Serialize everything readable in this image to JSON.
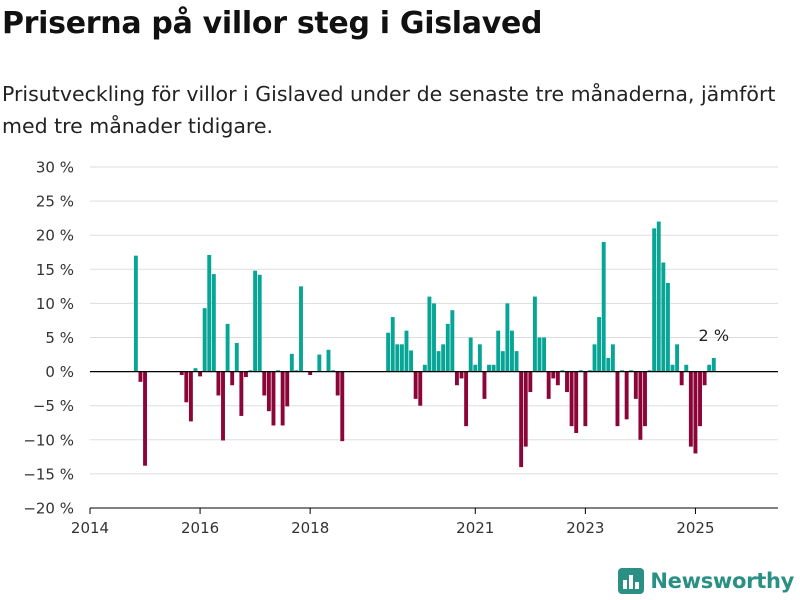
{
  "title": "Priserna på villor steg i Gislaved",
  "subtitle": "Prisutveckling för villor i Gislaved under de senaste tre månaderna, jämfört med tre månader tidigare.",
  "brand": "Newsworthy",
  "colors": {
    "positive": "#07a596",
    "negative": "#8c0538",
    "grid": "#dddddd",
    "axis": "#000000",
    "brand": "#2a8f84"
  },
  "chart_data": {
    "type": "bar",
    "xlabel": "",
    "ylabel": "",
    "ylim": [
      -20,
      30
    ],
    "yticks": [
      -20,
      -15,
      -10,
      -5,
      0,
      5,
      10,
      15,
      20,
      25,
      30
    ],
    "ytick_labels": [
      "−20 %",
      "−15 %",
      "−10 %",
      "−5 %",
      "0 %",
      "5 %",
      "10 %",
      "15 %",
      "20 %",
      "25 %",
      "30 %"
    ],
    "xticks": [
      2014,
      2016,
      2018,
      2021,
      2023,
      2025
    ],
    "xtick_labels": [
      "2014",
      "2016",
      "2018",
      "2021",
      "2023",
      "2025"
    ],
    "grid": true,
    "annotation": {
      "text": "2 %",
      "at": "last-bar"
    },
    "series": [
      {
        "x": [
          "2014-11",
          "2014-12",
          "2015-01",
          "2015-09",
          "2015-10",
          "2015-11",
          "2015-12",
          "2016-01",
          "2016-02",
          "2016-03",
          "2016-04",
          "2016-05",
          "2016-06",
          "2016-07",
          "2016-08",
          "2016-09",
          "2016-10",
          "2016-11",
          "2016-12",
          "2017-01",
          "2017-02",
          "2017-03",
          "2017-04",
          "2017-05",
          "2017-06",
          "2017-07",
          "2017-08",
          "2017-09",
          "2017-10",
          "2017-11",
          "2018-01",
          "2018-03",
          "2018-05",
          "2018-06",
          "2018-07",
          "2018-08",
          "2019-06",
          "2019-07",
          "2019-08",
          "2019-09",
          "2019-10",
          "2019-11",
          "2019-12",
          "2020-01",
          "2020-02",
          "2020-03",
          "2020-04",
          "2020-05",
          "2020-06",
          "2020-07",
          "2020-08",
          "2020-09",
          "2020-10",
          "2020-11",
          "2020-12",
          "2021-01",
          "2021-02",
          "2021-03",
          "2021-04",
          "2021-05",
          "2021-06",
          "2021-07",
          "2021-08",
          "2021-09",
          "2021-10",
          "2021-11",
          "2021-12",
          "2022-01",
          "2022-02",
          "2022-03",
          "2022-04",
          "2022-05",
          "2022-06",
          "2022-07",
          "2022-08",
          "2022-09",
          "2022-10",
          "2022-11",
          "2022-12",
          "2023-01",
          "2023-02",
          "2023-03",
          "2023-04",
          "2023-05",
          "2023-06",
          "2023-07",
          "2023-08",
          "2023-09",
          "2023-10",
          "2023-11",
          "2023-12",
          "2024-01",
          "2024-02",
          "2024-03",
          "2024-04",
          "2024-05",
          "2024-06",
          "2024-07",
          "2024-08",
          "2024-09",
          "2024-10",
          "2024-11",
          "2024-12",
          "2025-01",
          "2025-02",
          "2025-03",
          "2025-04",
          "2025-05"
        ],
        "values": [
          17,
          -1.5,
          -13.8,
          -0.5,
          -4.5,
          -7.3,
          0.5,
          -0.7,
          9.3,
          17.1,
          14.3,
          -3.5,
          -10.1,
          7,
          -2,
          4.2,
          -6.5,
          -0.8,
          0.2,
          14.8,
          14.2,
          -3.5,
          -5.8,
          -7.9,
          0.2,
          -7.9,
          -5.1,
          2.6,
          0.2,
          12.5,
          -0.5,
          2.5,
          3.2,
          0.2,
          -3.5,
          -10.2,
          5.7,
          8,
          4,
          4,
          6,
          3.1,
          -4,
          -5,
          1,
          11,
          10,
          3,
          4,
          7,
          9,
          -2,
          -1,
          -8,
          5,
          1,
          4,
          -4,
          1,
          1,
          6,
          3,
          10,
          6,
          3,
          -14,
          -11,
          -3,
          11,
          5,
          5,
          -4,
          -1,
          -2,
          0.2,
          -3,
          -8,
          -9,
          0.2,
          -8,
          0.2,
          4,
          8,
          19,
          2,
          4,
          -8,
          0.2,
          -7,
          0.2,
          -4,
          -10,
          -8,
          0.2,
          21,
          22,
          16,
          13,
          1,
          4,
          -2,
          1,
          -11,
          -12,
          -8,
          -2,
          1,
          2
        ]
      }
    ]
  }
}
